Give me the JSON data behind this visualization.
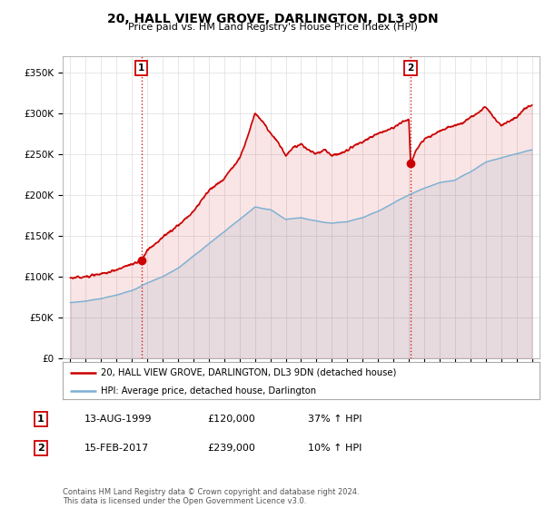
{
  "title": "20, HALL VIEW GROVE, DARLINGTON, DL3 9DN",
  "subtitle": "Price paid vs. HM Land Registry's House Price Index (HPI)",
  "ylabel_ticks": [
    "£0",
    "£50K",
    "£100K",
    "£150K",
    "£200K",
    "£250K",
    "£300K",
    "£350K"
  ],
  "ytick_values": [
    0,
    50000,
    100000,
    150000,
    200000,
    250000,
    300000,
    350000
  ],
  "ylim": [
    0,
    370000
  ],
  "xlim_start": 1994.5,
  "xlim_end": 2025.5,
  "legend_label_red": "20, HALL VIEW GROVE, DARLINGTON, DL3 9DN (detached house)",
  "legend_label_blue": "HPI: Average price, detached house, Darlington",
  "footer": "Contains HM Land Registry data © Crown copyright and database right 2024.\nThis data is licensed under the Open Government Licence v3.0.",
  "red_color": "#cc0000",
  "blue_color": "#7ab0d4",
  "background_color": "#ffffff",
  "grid_color": "#dddddd",
  "ann1_x": 1999.62,
  "ann1_y": 120000,
  "ann2_x": 2017.12,
  "ann2_y": 239000,
  "hpi_years": [
    1995,
    1996,
    1997,
    1998,
    1999,
    2000,
    2001,
    2002,
    2003,
    2004,
    2005,
    2006,
    2007,
    2008,
    2009,
    2010,
    2011,
    2012,
    2013,
    2014,
    2015,
    2016,
    2017,
    2018,
    2019,
    2020,
    2021,
    2022,
    2023,
    2024,
    2025
  ],
  "hpi_vals": [
    68000,
    70000,
    73000,
    77000,
    83000,
    92000,
    100000,
    110000,
    125000,
    140000,
    155000,
    170000,
    185000,
    182000,
    170000,
    172000,
    168000,
    165000,
    167000,
    172000,
    180000,
    190000,
    200000,
    208000,
    215000,
    218000,
    228000,
    240000,
    245000,
    250000,
    255000
  ],
  "prop_years": [
    1995,
    1996,
    1997,
    1998,
    1999,
    1999.62,
    2000,
    2001,
    2002,
    2003,
    2004,
    2005,
    2006,
    2006.5,
    2007,
    2007.5,
    2008,
    2008.5,
    2009,
    2009.5,
    2010,
    2010.5,
    2011,
    2011.5,
    2012,
    2012.5,
    2013,
    2013.5,
    2014,
    2014.5,
    2015,
    2015.5,
    2016,
    2016.5,
    2017,
    2017.12,
    2017.5,
    2018,
    2018.5,
    2019,
    2019.5,
    2020,
    2020.5,
    2021,
    2021.5,
    2022,
    2022.5,
    2023,
    2023.5,
    2024,
    2024.5,
    2025
  ],
  "prop_vals": [
    98000,
    100000,
    103000,
    108000,
    115000,
    120000,
    132000,
    148000,
    162000,
    180000,
    205000,
    220000,
    245000,
    270000,
    300000,
    290000,
    275000,
    265000,
    248000,
    258000,
    262000,
    255000,
    250000,
    255000,
    248000,
    250000,
    255000,
    260000,
    265000,
    270000,
    275000,
    278000,
    282000,
    288000,
    292000,
    239000,
    255000,
    268000,
    272000,
    278000,
    282000,
    285000,
    288000,
    295000,
    300000,
    308000,
    295000,
    285000,
    290000,
    295000,
    305000,
    310000
  ]
}
